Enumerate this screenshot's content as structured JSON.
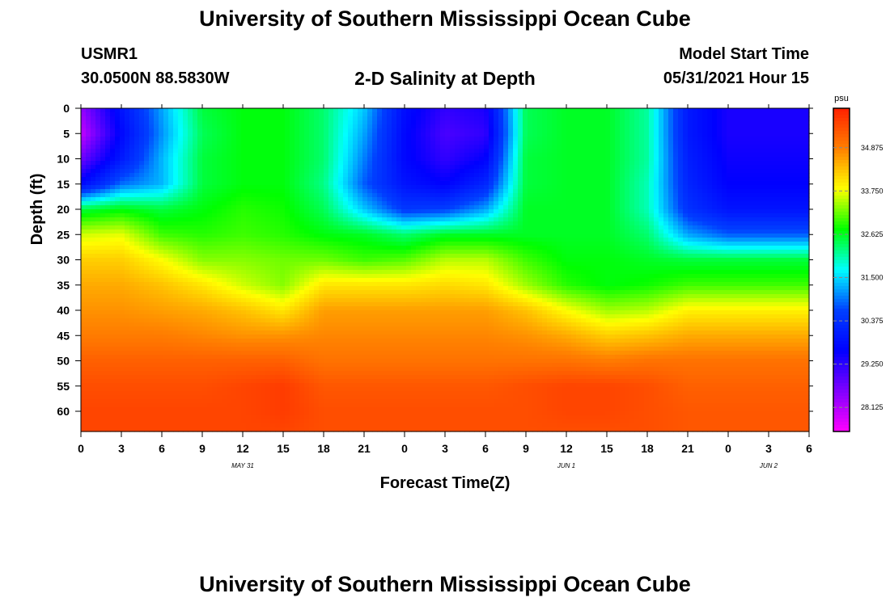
{
  "header": {
    "title": "University of Southern Mississippi Ocean Cube",
    "station_id": "USMR1",
    "station_position": "30.0500N  88.5830W",
    "plot_title": "2-D Salinity at Depth",
    "model_start_label": "Model Start Time",
    "model_start_value": "05/31/2021 Hour 15"
  },
  "footer": {
    "title": "University of Southern Mississippi Ocean Cube"
  },
  "chart_data": {
    "type": "heatmap",
    "title": "2-D Salinity at Depth",
    "xlabel": "Forecast Time(Z)",
    "ylabel": "Depth (ft)",
    "x_tick_labels": [
      "0",
      "3",
      "6",
      "9",
      "12",
      "15",
      "18",
      "21",
      "0",
      "3",
      "6",
      "9",
      "12",
      "15",
      "18",
      "21",
      "0",
      "3",
      "6"
    ],
    "date_labels": [
      {
        "label": "MAY 31",
        "after_tick": 4
      },
      {
        "label": "JUN 1",
        "after_tick": 12
      },
      {
        "label": "JUN 2",
        "after_tick": 17
      }
    ],
    "y_ticks": [
      0,
      5,
      10,
      15,
      20,
      25,
      30,
      35,
      40,
      45,
      50,
      55,
      60
    ],
    "ylim": [
      0,
      64
    ],
    "forecast_hours": [
      0,
      3,
      6,
      9,
      12,
      15,
      18,
      21,
      24,
      27,
      30,
      33,
      36,
      39,
      42,
      45,
      48,
      51,
      54
    ],
    "depths_ft": [
      0,
      5,
      10,
      15,
      20,
      25,
      30,
      35,
      40,
      45,
      50,
      55,
      60,
      64
    ],
    "values": [
      [
        28.4,
        29.9,
        31.2,
        32.5,
        32.7,
        32.7,
        32.3,
        31.4,
        29.8,
        29.2,
        29.4,
        32.4,
        32.6,
        32.6,
        32.1,
        30.0,
        29.4,
        29.4,
        29.4
      ],
      [
        28.0,
        29.7,
        31.1,
        32.4,
        32.7,
        32.7,
        32.3,
        31.2,
        29.7,
        29.0,
        29.2,
        32.4,
        32.6,
        32.6,
        32.1,
        30.0,
        29.4,
        29.4,
        29.4
      ],
      [
        28.7,
        30.0,
        31.3,
        32.5,
        32.7,
        32.7,
        32.3,
        31.0,
        29.7,
        29.2,
        29.6,
        32.5,
        32.6,
        32.6,
        32.1,
        30.1,
        29.5,
        29.5,
        29.5
      ],
      [
        29.7,
        30.9,
        31.3,
        32.5,
        32.7,
        32.7,
        32.2,
        30.8,
        29.9,
        29.6,
        30.2,
        32.5,
        32.6,
        32.6,
        32.0,
        30.2,
        29.6,
        29.6,
        29.6
      ],
      [
        32.5,
        32.7,
        32.5,
        32.7,
        32.9,
        32.8,
        32.4,
        31.4,
        30.5,
        30.6,
        31.2,
        32.6,
        32.6,
        32.6,
        32.0,
        30.4,
        29.9,
        29.9,
        29.9
      ],
      [
        33.6,
        33.7,
        33.0,
        32.9,
        33.0,
        32.9,
        32.7,
        32.6,
        32.3,
        32.6,
        32.6,
        32.6,
        32.6,
        32.6,
        32.3,
        31.2,
        30.8,
        30.8,
        30.8
      ],
      [
        34.2,
        34.2,
        33.8,
        33.3,
        33.3,
        33.2,
        33.2,
        33.0,
        33.1,
        33.5,
        33.5,
        33.0,
        32.7,
        32.7,
        32.6,
        32.5,
        32.5,
        32.5,
        32.5
      ],
      [
        34.5,
        34.5,
        34.3,
        34.0,
        33.6,
        33.3,
        34.0,
        34.0,
        34.0,
        34.1,
        34.0,
        33.4,
        32.9,
        32.7,
        32.8,
        33.0,
        33.0,
        33.0,
        33.0
      ],
      [
        34.7,
        34.7,
        34.6,
        34.5,
        34.3,
        34.0,
        34.6,
        34.6,
        34.6,
        34.6,
        34.6,
        34.3,
        33.8,
        33.4,
        33.5,
        33.9,
        33.9,
        33.9,
        33.9
      ],
      [
        34.9,
        34.9,
        34.9,
        34.8,
        34.7,
        34.7,
        34.8,
        34.8,
        34.8,
        34.8,
        34.8,
        34.7,
        34.5,
        34.2,
        34.3,
        34.5,
        34.5,
        34.5,
        34.5
      ],
      [
        35.2,
        35.2,
        35.2,
        35.2,
        35.2,
        35.2,
        35.0,
        35.0,
        35.0,
        35.0,
        35.0,
        35.0,
        35.0,
        34.9,
        35.0,
        35.0,
        35.0,
        35.0,
        35.0
      ],
      [
        35.4,
        35.4,
        35.4,
        35.4,
        35.5,
        35.6,
        35.3,
        35.3,
        35.3,
        35.3,
        35.3,
        35.4,
        35.5,
        35.5,
        35.4,
        35.2,
        35.2,
        35.2,
        35.2
      ],
      [
        35.5,
        35.5,
        35.5,
        35.5,
        35.5,
        35.6,
        35.4,
        35.4,
        35.4,
        35.4,
        35.4,
        35.4,
        35.5,
        35.5,
        35.4,
        35.3,
        35.3,
        35.3,
        35.3
      ],
      [
        35.5,
        35.5,
        35.5,
        35.5,
        35.5,
        35.5,
        35.4,
        35.4,
        35.4,
        35.4,
        35.4,
        35.4,
        35.4,
        35.4,
        35.4,
        35.3,
        35.3,
        35.3,
        35.3
      ]
    ],
    "colorbar": {
      "unit": "psu",
      "min": 27.5,
      "max": 35.9,
      "tick_labels": [
        "34.875",
        "33.750",
        "32.625",
        "31.500",
        "30.375",
        "29.250",
        "28.125"
      ],
      "tick_values": [
        34.875,
        33.75,
        32.625,
        31.5,
        30.375,
        29.25,
        28.125
      ],
      "colors": [
        "#ff00ff",
        "#8000ff",
        "#0000ff",
        "#0040ff",
        "#00ffff",
        "#00ff00",
        "#ffff00",
        "#ff8000",
        "#ff2000"
      ]
    },
    "grid": false
  }
}
